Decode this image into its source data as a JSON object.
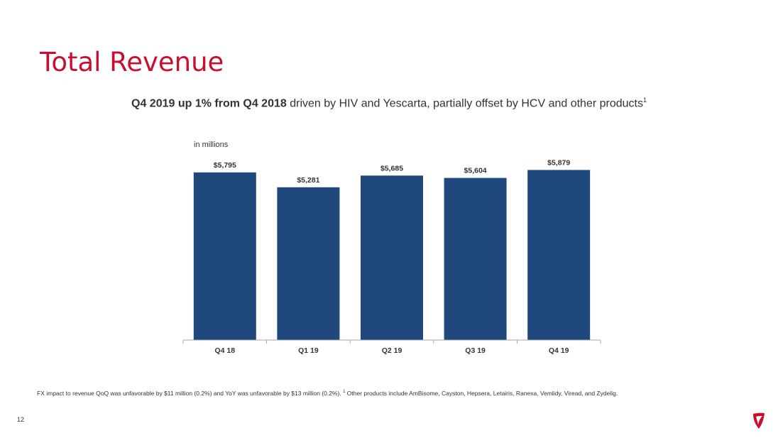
{
  "slide": {
    "title": "Total Revenue",
    "subtitle_bold": "Q4 2019 up 1% from Q4 2018",
    "subtitle_rest": " driven by HIV and Yescarta, partially offset by HCV and other products",
    "subtitle_sup": "1",
    "footnote_main": "FX impact to revenue QoQ was unfavorable by $11 million (0.2%) and YoY was unfavorable by $13 million (0.2%). ",
    "footnote_sup": "1",
    "footnote_rest": " Other products include AmBisome, Cayston, Hepsera, Letairis, Ranexa, Vemlidy, Viread, and Zydelig.",
    "page_number": "12",
    "logo_icon": "shield-logo-icon",
    "accent_color": "#c8102e"
  },
  "chart_data": {
    "type": "bar",
    "title": "",
    "unit_label": "in millions",
    "categories": [
      "Q4 18",
      "Q1 19",
      "Q2 19",
      "Q3 19",
      "Q4 19"
    ],
    "values": [
      5795,
      5281,
      5685,
      5604,
      5879
    ],
    "data_labels": [
      "$5,795",
      "$5,281",
      "$5,685",
      "$5,604",
      "$5,879"
    ],
    "xlabel": "",
    "ylabel": "",
    "grid": false,
    "bar_color": "#1f497d"
  }
}
